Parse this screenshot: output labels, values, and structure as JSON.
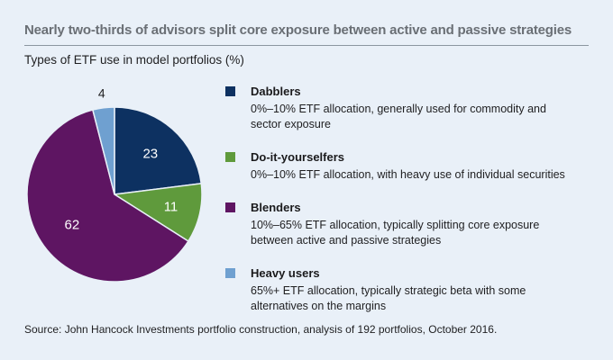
{
  "page": {
    "title": "Nearly two-thirds of advisors split core exposure between active and passive strategies",
    "subtitle": "Types of ETF use in model portfolios (%)",
    "source": "Source: John Hancock Investments portfolio construction, analysis of 192 portfolios, October 2016."
  },
  "colors": {
    "background": "#e9f0f8",
    "title_text": "#6a6f75",
    "rule": "#8c96a0",
    "body_text": "#1f1f21",
    "slice_inside_label": "#ffffff",
    "slice_outside_label": "#1f1f21",
    "slice_border": "#e9f0f8"
  },
  "chart_data": {
    "type": "pie",
    "title": "Types of ETF use in model portfolios (%)",
    "units": "percent",
    "start_angle_deg": 0,
    "direction": "clockwise",
    "legend_position": "right",
    "slices": [
      {
        "label": "Dabblers",
        "value": 23,
        "color": "#0d3161",
        "label_inside": true
      },
      {
        "label": "Do-it-yourselfers",
        "value": 11,
        "color": "#5f9a3c",
        "label_inside": true
      },
      {
        "label": "Blenders",
        "value": 62,
        "color": "#5e1562",
        "label_inside": true
      },
      {
        "label": "Heavy users",
        "value": 4,
        "color": "#6fa0d0",
        "label_inside": false
      }
    ]
  },
  "legend": {
    "items": [
      {
        "name": "Dabblers",
        "description": "0%–10% ETF allocation, generally used for commodity and sector exposure",
        "color": "#0d3161"
      },
      {
        "name": "Do-it-yourselfers",
        "description": "0%–10% ETF allocation, with heavy use of individual securities",
        "color": "#5f9a3c"
      },
      {
        "name": "Blenders",
        "description": "10%–65% ETF allocation, typically splitting core exposure between active and passive strategies",
        "color": "#5e1562"
      },
      {
        "name": "Heavy users",
        "description": "65%+ ETF allocation, typically strategic beta with some alternatives on the margins",
        "color": "#6fa0d0"
      }
    ]
  }
}
